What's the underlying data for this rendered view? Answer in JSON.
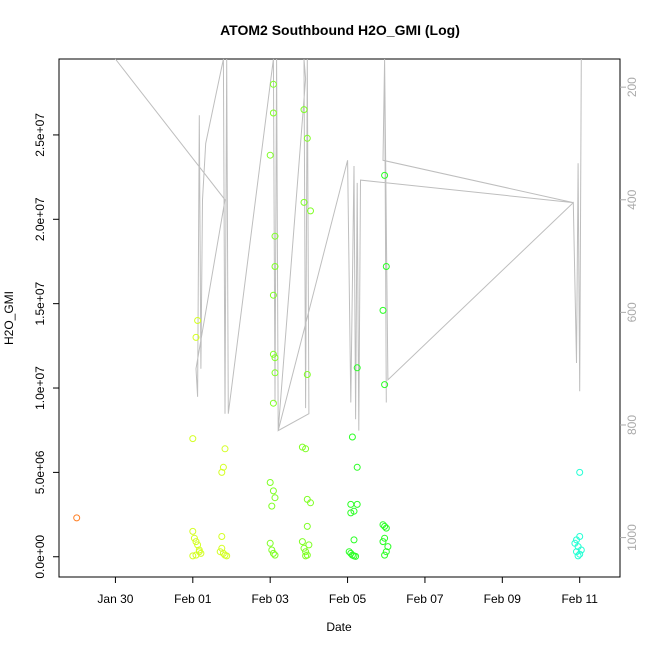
{
  "chart_data": {
    "type": "scatter",
    "title": "ATOM2 Southbound H2O_GMI (Log)",
    "xlabel": "Date",
    "ylabel": "H2O_GMI",
    "x_axis_type": "date",
    "xlim": [
      "2016-01-28T13:00",
      "2016-02-12T01:00"
    ],
    "ylim": [
      -1200000,
      29500000
    ],
    "x_ticks": [
      {
        "date": "2016-01-30",
        "label": "Jan 30"
      },
      {
        "date": "2016-02-01",
        "label": "Feb 01"
      },
      {
        "date": "2016-02-03",
        "label": "Feb 03"
      },
      {
        "date": "2016-02-05",
        "label": "Feb 05"
      },
      {
        "date": "2016-02-07",
        "label": "Feb 07"
      },
      {
        "date": "2016-02-09",
        "label": "Feb 09"
      },
      {
        "date": "2016-02-11",
        "label": "Feb 11"
      }
    ],
    "y_ticks": [
      {
        "value": 0,
        "label": "0.0e+00"
      },
      {
        "value": 5000000,
        "label": "5.0e+06"
      },
      {
        "value": 10000000,
        "label": "1.0e+07"
      },
      {
        "value": 15000000,
        "label": "1.5e+07"
      },
      {
        "value": 20000000,
        "label": "2.0e+07"
      },
      {
        "value": 25000000,
        "label": "2.5e+07"
      }
    ],
    "right_axis": {
      "ylim": [
        1070,
        150
      ],
      "ticks": [
        {
          "value": 200,
          "label": "200"
        },
        {
          "value": 400,
          "label": "400"
        },
        {
          "value": 600,
          "label": "600"
        },
        {
          "value": 800,
          "label": "800"
        },
        {
          "value": 1000,
          "label": "1000"
        }
      ],
      "color": "#aaaaaa"
    },
    "grid": false,
    "legend": "none",
    "colors": {
      "line": "#bebebe",
      "orange": "#ff7f24",
      "yellow": "#d4ff24",
      "lightgreen": "#7fff24",
      "green": "#2aff24",
      "cyan": "#24ffd4"
    },
    "line_series": [
      [
        "2016-01-30T00:00",
        150
      ],
      [
        "2016-02-01T20:00",
        400
      ],
      [
        "2016-02-01T02:00",
        700
      ],
      [
        "2016-02-01T03:00",
        750
      ],
      [
        "2016-02-01T04:00",
        250
      ],
      [
        "2016-02-01T05:00",
        700
      ],
      [
        "2016-02-01T06:00",
        400
      ],
      [
        "2016-02-01T08:00",
        300
      ],
      [
        "2016-02-01T19:00",
        150
      ],
      [
        "2016-02-01T20:00",
        780
      ],
      [
        "2016-02-01T21:00",
        150
      ],
      [
        "2016-02-01T22:00",
        780
      ],
      [
        "2016-02-03T02:00",
        150
      ],
      [
        "2016-02-03T03:00",
        760
      ],
      [
        "2016-02-03T04:00",
        150
      ],
      [
        "2016-02-03T05:00",
        810
      ],
      [
        "2016-02-03T22:00",
        185
      ],
      [
        "2016-02-03T21:00",
        150
      ],
      [
        "2016-02-03T22:00",
        770
      ],
      [
        "2016-02-03T23:00",
        150
      ],
      [
        "2016-02-04T00:00",
        780
      ],
      [
        "2016-02-03T05:00",
        810
      ],
      [
        "2016-02-05T00:00",
        330
      ],
      [
        "2016-02-05T02:00",
        760
      ],
      [
        "2016-02-05T04:00",
        340
      ],
      [
        "2016-02-05T05:00",
        790
      ],
      [
        "2016-02-05T06:00",
        370
      ],
      [
        "2016-02-05T07:00",
        810
      ],
      [
        "2016-02-05T08:00",
        365
      ],
      [
        "2016-02-10T20:00",
        405
      ],
      [
        "2016-02-05T22:00",
        330
      ],
      [
        "2016-02-05T23:00",
        150
      ],
      [
        "2016-02-06T00:00",
        760
      ],
      [
        "2016-02-05T23:00",
        150
      ],
      [
        "2016-02-06T01:00",
        720
      ],
      [
        "2016-02-10T20:00",
        405
      ],
      [
        "2016-02-10T22:00",
        690
      ],
      [
        "2016-02-10T23:00",
        335
      ],
      [
        "2016-02-11T00:00",
        740
      ],
      [
        "2016-02-11T01:00",
        150
      ]
    ],
    "points": [
      {
        "x": "2016-01-29T00:00",
        "y": 2300000,
        "color": "orange"
      },
      {
        "x": "2016-02-01T00:00",
        "y": 7000000,
        "color": "yellow"
      },
      {
        "x": "2016-02-01T02:00",
        "y": 13000000,
        "color": "yellow"
      },
      {
        "x": "2016-02-01T03:00",
        "y": 14000000,
        "color": "yellow"
      },
      {
        "x": "2016-02-01T00:00",
        "y": 1500000,
        "color": "yellow"
      },
      {
        "x": "2016-02-01T01:00",
        "y": 1100000,
        "color": "yellow"
      },
      {
        "x": "2016-02-01T02:00",
        "y": 900000,
        "color": "yellow"
      },
      {
        "x": "2016-02-01T03:00",
        "y": 700000,
        "color": "yellow"
      },
      {
        "x": "2016-02-01T04:00",
        "y": 400000,
        "color": "yellow"
      },
      {
        "x": "2016-02-01T05:00",
        "y": 200000,
        "color": "yellow"
      },
      {
        "x": "2016-02-01T00:00",
        "y": 50000,
        "color": "yellow"
      },
      {
        "x": "2016-02-01T02:00",
        "y": 100000,
        "color": "yellow"
      },
      {
        "x": "2016-02-01T04:00",
        "y": 300000,
        "color": "yellow"
      },
      {
        "x": "2016-02-01T20:00",
        "y": 6400000,
        "color": "yellow"
      },
      {
        "x": "2016-02-01T19:00",
        "y": 5300000,
        "color": "yellow"
      },
      {
        "x": "2016-02-01T18:00",
        "y": 5000000,
        "color": "yellow"
      },
      {
        "x": "2016-02-01T18:00",
        "y": 1200000,
        "color": "yellow"
      },
      {
        "x": "2016-02-01T18:00",
        "y": 500000,
        "color": "yellow"
      },
      {
        "x": "2016-02-01T19:00",
        "y": 200000,
        "color": "yellow"
      },
      {
        "x": "2016-02-01T20:00",
        "y": 100000,
        "color": "yellow"
      },
      {
        "x": "2016-02-01T21:00",
        "y": 50000,
        "color": "yellow"
      },
      {
        "x": "2016-02-01T17:00",
        "y": 300000,
        "color": "yellow"
      },
      {
        "x": "2016-02-03T02:00",
        "y": 28000000,
        "color": "lightgreen"
      },
      {
        "x": "2016-02-03T02:00",
        "y": 26300000,
        "color": "lightgreen"
      },
      {
        "x": "2016-02-03T00:00",
        "y": 23800000,
        "color": "lightgreen"
      },
      {
        "x": "2016-02-03T03:00",
        "y": 19000000,
        "color": "lightgreen"
      },
      {
        "x": "2016-02-03T03:00",
        "y": 17200000,
        "color": "lightgreen"
      },
      {
        "x": "2016-02-03T02:00",
        "y": 15500000,
        "color": "lightgreen"
      },
      {
        "x": "2016-02-03T02:00",
        "y": 12000000,
        "color": "lightgreen"
      },
      {
        "x": "2016-02-03T03:00",
        "y": 11800000,
        "color": "lightgreen"
      },
      {
        "x": "2016-02-03T03:00",
        "y": 10900000,
        "color": "lightgreen"
      },
      {
        "x": "2016-02-03T02:00",
        "y": 9100000,
        "color": "lightgreen"
      },
      {
        "x": "2016-02-03T00:00",
        "y": 4400000,
        "color": "lightgreen"
      },
      {
        "x": "2016-02-03T02:00",
        "y": 3900000,
        "color": "lightgreen"
      },
      {
        "x": "2016-02-03T03:00",
        "y": 3500000,
        "color": "lightgreen"
      },
      {
        "x": "2016-02-03T01:00",
        "y": 3000000,
        "color": "lightgreen"
      },
      {
        "x": "2016-02-03T00:00",
        "y": 800000,
        "color": "lightgreen"
      },
      {
        "x": "2016-02-03T01:00",
        "y": 400000,
        "color": "lightgreen"
      },
      {
        "x": "2016-02-03T02:00",
        "y": 200000,
        "color": "lightgreen"
      },
      {
        "x": "2016-02-03T03:00",
        "y": 100000,
        "color": "lightgreen"
      },
      {
        "x": "2016-02-03T21:00",
        "y": 26500000,
        "color": "lightgreen"
      },
      {
        "x": "2016-02-03T23:00",
        "y": 24800000,
        "color": "lightgreen"
      },
      {
        "x": "2016-02-03T21:00",
        "y": 21000000,
        "color": "lightgreen"
      },
      {
        "x": "2016-02-04T01:00",
        "y": 20500000,
        "color": "lightgreen"
      },
      {
        "x": "2016-02-03T23:00",
        "y": 10800000,
        "color": "lightgreen"
      },
      {
        "x": "2016-02-03T20:00",
        "y": 6500000,
        "color": "lightgreen"
      },
      {
        "x": "2016-02-03T22:00",
        "y": 6400000,
        "color": "lightgreen"
      },
      {
        "x": "2016-02-03T23:00",
        "y": 3400000,
        "color": "lightgreen"
      },
      {
        "x": "2016-02-04T01:00",
        "y": 3200000,
        "color": "lightgreen"
      },
      {
        "x": "2016-02-03T23:00",
        "y": 1800000,
        "color": "lightgreen"
      },
      {
        "x": "2016-02-03T20:00",
        "y": 900000,
        "color": "lightgreen"
      },
      {
        "x": "2016-02-03T21:00",
        "y": 500000,
        "color": "lightgreen"
      },
      {
        "x": "2016-02-03T22:00",
        "y": 300000,
        "color": "lightgreen"
      },
      {
        "x": "2016-02-04T00:00",
        "y": 700000,
        "color": "lightgreen"
      },
      {
        "x": "2016-02-03T23:00",
        "y": 100000,
        "color": "lightgreen"
      },
      {
        "x": "2016-02-03T22:00",
        "y": 50000,
        "color": "lightgreen"
      },
      {
        "x": "2016-02-05T03:00",
        "y": 7100000,
        "color": "green"
      },
      {
        "x": "2016-02-05T06:00",
        "y": 11200000,
        "color": "green"
      },
      {
        "x": "2016-02-05T06:00",
        "y": 5300000,
        "color": "green"
      },
      {
        "x": "2016-02-05T02:00",
        "y": 3100000,
        "color": "green"
      },
      {
        "x": "2016-02-05T06:00",
        "y": 3100000,
        "color": "green"
      },
      {
        "x": "2016-02-05T02:00",
        "y": 2600000,
        "color": "green"
      },
      {
        "x": "2016-02-05T04:00",
        "y": 2700000,
        "color": "green"
      },
      {
        "x": "2016-02-05T04:00",
        "y": 1000000,
        "color": "green"
      },
      {
        "x": "2016-02-05T01:00",
        "y": 300000,
        "color": "green"
      },
      {
        "x": "2016-02-05T02:00",
        "y": 200000,
        "color": "green"
      },
      {
        "x": "2016-02-05T03:00",
        "y": 100000,
        "color": "green"
      },
      {
        "x": "2016-02-05T04:00",
        "y": 50000,
        "color": "green"
      },
      {
        "x": "2016-02-05T05:00",
        "y": 20000,
        "color": "green"
      },
      {
        "x": "2016-02-05T23:00",
        "y": 22600000,
        "color": "green"
      },
      {
        "x": "2016-02-06T00:00",
        "y": 17200000,
        "color": "green"
      },
      {
        "x": "2016-02-05T22:00",
        "y": 14600000,
        "color": "green"
      },
      {
        "x": "2016-02-05T23:00",
        "y": 10200000,
        "color": "green"
      },
      {
        "x": "2016-02-05T22:00",
        "y": 1900000,
        "color": "green"
      },
      {
        "x": "2016-02-05T23:00",
        "y": 1800000,
        "color": "green"
      },
      {
        "x": "2016-02-06T00:00",
        "y": 1700000,
        "color": "green"
      },
      {
        "x": "2016-02-05T22:00",
        "y": 900000,
        "color": "green"
      },
      {
        "x": "2016-02-05T23:00",
        "y": 1100000,
        "color": "green"
      },
      {
        "x": "2016-02-06T01:00",
        "y": 600000,
        "color": "green"
      },
      {
        "x": "2016-02-06T00:00",
        "y": 300000,
        "color": "green"
      },
      {
        "x": "2016-02-05T23:00",
        "y": 100000,
        "color": "green"
      },
      {
        "x": "2016-02-11T00:00",
        "y": 5000000,
        "color": "cyan"
      },
      {
        "x": "2016-02-11T00:00",
        "y": 1200000,
        "color": "cyan"
      },
      {
        "x": "2016-02-10T22:00",
        "y": 1000000,
        "color": "cyan"
      },
      {
        "x": "2016-02-10T21:00",
        "y": 800000,
        "color": "cyan"
      },
      {
        "x": "2016-02-10T23:00",
        "y": 600000,
        "color": "cyan"
      },
      {
        "x": "2016-02-11T01:00",
        "y": 400000,
        "color": "cyan"
      },
      {
        "x": "2016-02-10T22:00",
        "y": 300000,
        "color": "cyan"
      },
      {
        "x": "2016-02-11T00:00",
        "y": 150000,
        "color": "cyan"
      },
      {
        "x": "2016-02-10T23:00",
        "y": 50000,
        "color": "cyan"
      }
    ]
  }
}
